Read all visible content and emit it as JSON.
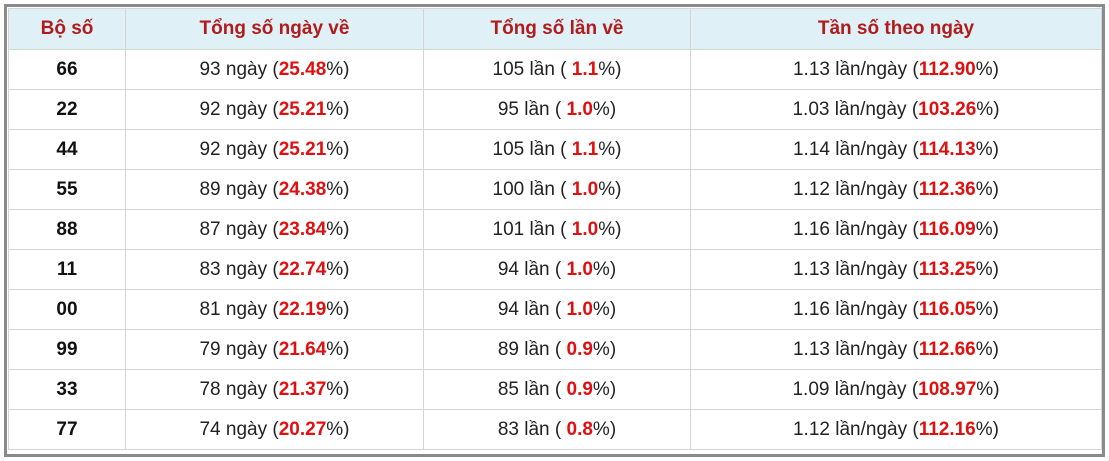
{
  "table": {
    "header": [
      "Bộ số",
      "Tổng số ngày về",
      "Tổng số lần về",
      "Tần số theo ngày"
    ],
    "rows": [
      [
        "66",
        [
          "93 ngày (",
          "25.48",
          "%)"
        ],
        [
          "105 lần ( ",
          "1.1",
          "%)"
        ],
        [
          "1.13 lần/ngày (",
          "112.90",
          "%)"
        ]
      ],
      [
        "22",
        [
          "92 ngày (",
          "25.21",
          "%)"
        ],
        [
          "95 lần ( ",
          "1.0",
          "%)"
        ],
        [
          "1.03 lần/ngày (",
          "103.26",
          "%)"
        ]
      ],
      [
        "44",
        [
          "92 ngày (",
          "25.21",
          "%)"
        ],
        [
          "105 lần ( ",
          "1.1",
          "%)"
        ],
        [
          "1.14 lần/ngày (",
          "114.13",
          "%)"
        ]
      ],
      [
        "55",
        [
          "89 ngày (",
          "24.38",
          "%)"
        ],
        [
          "100 lần ( ",
          "1.0",
          "%)"
        ],
        [
          "1.12 lần/ngày (",
          "112.36",
          "%)"
        ]
      ],
      [
        "88",
        [
          "87 ngày (",
          "23.84",
          "%)"
        ],
        [
          "101 lần ( ",
          "1.0",
          "%)"
        ],
        [
          "1.16 lần/ngày (",
          "116.09",
          "%)"
        ]
      ],
      [
        "11",
        [
          "83 ngày (",
          "22.74",
          "%)"
        ],
        [
          "94 lần ( ",
          "1.0",
          "%)"
        ],
        [
          "1.13 lần/ngày (",
          "113.25",
          "%)"
        ]
      ],
      [
        "00",
        [
          "81 ngày (",
          "22.19",
          "%)"
        ],
        [
          "94 lần ( ",
          "1.0",
          "%)"
        ],
        [
          "1.16 lần/ngày (",
          "116.05",
          "%)"
        ]
      ],
      [
        "99",
        [
          "79 ngày (",
          "21.64",
          "%)"
        ],
        [
          "89 lần ( ",
          "0.9",
          "%)"
        ],
        [
          "1.13 lần/ngày (",
          "112.66",
          "%)"
        ]
      ],
      [
        "33",
        [
          "78 ngày (",
          "21.37",
          "%)"
        ],
        [
          "85 lần ( ",
          "0.9",
          "%)"
        ],
        [
          "1.09 lần/ngày (",
          "108.97",
          "%)"
        ]
      ],
      [
        "77",
        [
          "74 ngày (",
          "20.27",
          "%)"
        ],
        [
          "83 lần ( ",
          "0.8",
          "%)"
        ],
        [
          "1.12 lần/ngày (",
          "112.16",
          "%)"
        ]
      ]
    ]
  }
}
